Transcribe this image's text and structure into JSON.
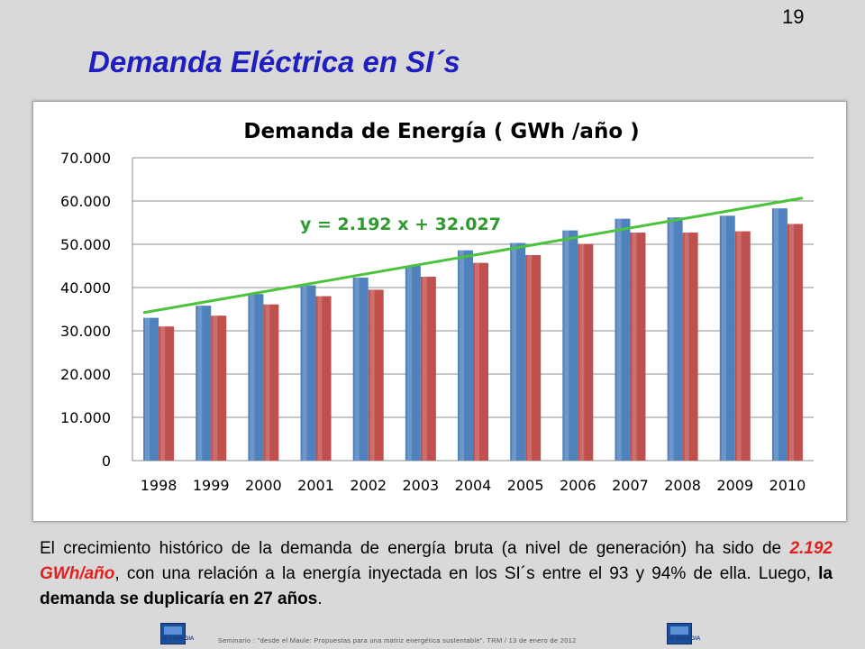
{
  "page_number": "19",
  "slide_title": "Demanda Eléctrica en SI´s",
  "chart_data": {
    "type": "bar",
    "title": "Demanda de Energía ( GWh /año )",
    "categories": [
      "1998",
      "1999",
      "2000",
      "2001",
      "2002",
      "2003",
      "2004",
      "2005",
      "2006",
      "2007",
      "2008",
      "2009",
      "2010"
    ],
    "series": [
      {
        "values": [
          33000,
          35800,
          38500,
          40500,
          42300,
          45000,
          48600,
          50300,
          53200,
          55900,
          56200,
          56600,
          58300
        ],
        "color": "#4f81bd"
      },
      {
        "values": [
          31000,
          33500,
          36100,
          38000,
          39500,
          42500,
          45700,
          47500,
          50100,
          52700,
          52700,
          53000,
          54700
        ],
        "color": "#c0504d"
      }
    ],
    "trendline": {
      "label": "y = 2.192 x + 32.027",
      "start": 34200,
      "end": 60700,
      "color": "#4cc33c"
    },
    "ylim": [
      0,
      70000
    ],
    "yticks": [
      "0",
      "10.000",
      "20.000",
      "30.000",
      "40.000",
      "50.000",
      "60.000",
      "70.000"
    ],
    "grid": true,
    "legend": "none"
  },
  "description": {
    "part1": "El crecimiento histórico de la demanda de energía bruta (a nivel de generación) ha sido de ",
    "highlight": "2.192 GWh/año",
    "part2": ", con una relación a la energía inyectada en los SI´s entre el 93 y 94% de ella. Luego, ",
    "bold": "la demanda se duplicaría en 27 años",
    "part3": "."
  },
  "footer": {
    "logo_label": "DE ENERGIA",
    "text": "Seminario : \"desde el Maule: Propuestas para una matriz energética sustentable\".  TRM  /  13 de enero de 2012"
  }
}
